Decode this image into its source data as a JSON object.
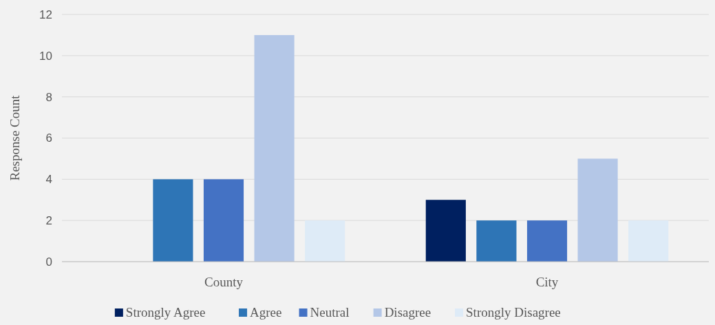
{
  "chart_data": {
    "type": "bar",
    "ylabel": "Response Count",
    "categories": [
      "County",
      "City"
    ],
    "series": [
      {
        "name": "Strongly Agree",
        "color": "#002060",
        "values": [
          0,
          3
        ]
      },
      {
        "name": "Agree",
        "color": "#2e75b6",
        "values": [
          4,
          2
        ]
      },
      {
        "name": "Neutral",
        "color": "#4472c4",
        "values": [
          4,
          2
        ]
      },
      {
        "name": "Disagree",
        "color": "#b4c7e7",
        "values": [
          11,
          5
        ]
      },
      {
        "name": "Strongly Disagree",
        "color": "#deebf7",
        "values": [
          2,
          2
        ]
      }
    ],
    "ylim": [
      0,
      12
    ],
    "yticks": [
      0,
      2,
      4,
      6,
      8,
      10,
      12
    ],
    "grid": "y",
    "legend": "bottom"
  }
}
